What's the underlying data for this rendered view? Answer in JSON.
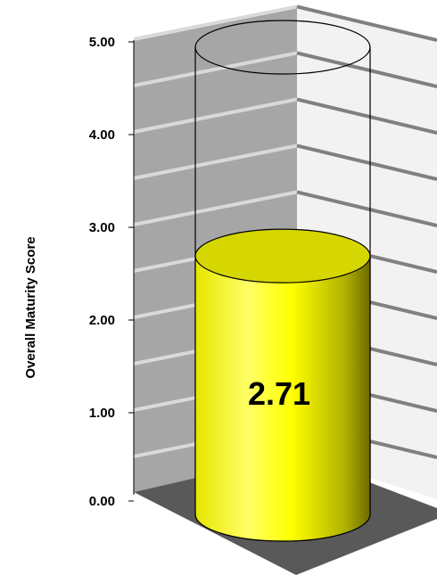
{
  "chart_data": {
    "type": "bar",
    "style": "3d-cylinder",
    "categories": [
      ""
    ],
    "values": [
      2.71
    ],
    "ylabel": "Overall Maturity Score",
    "ylim": [
      0,
      5
    ],
    "yticks": [
      "0.00",
      "1.00",
      "2.00",
      "3.00",
      "4.00",
      "5.00"
    ],
    "data_labels": [
      "2.71"
    ],
    "grid": true,
    "legend": "none"
  },
  "colors": {
    "bar_fill": "#ffff00",
    "bar_top": "#d6d600",
    "back_wall": "#a6a6a6",
    "side_wall": "#f2f2f2",
    "floor": "#595959",
    "gridline_back": "#d9d9d9",
    "gridline_side": "#808080"
  }
}
